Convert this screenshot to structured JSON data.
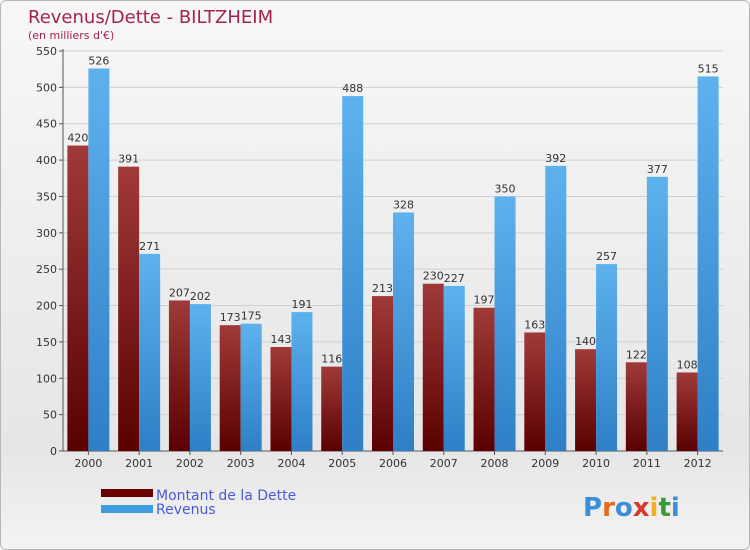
{
  "chart_data": {
    "type": "bar",
    "title": "Revenus/Dette - BILTZHEIM",
    "subtitle": "(en milliers d'€)",
    "categories": [
      "2000",
      "2001",
      "2002",
      "2003",
      "2004",
      "2005",
      "2006",
      "2007",
      "2008",
      "2009",
      "2010",
      "2011",
      "2012"
    ],
    "series": [
      {
        "name": "Montant de la Dette",
        "color": "#7a0a0a",
        "values": [
          420,
          391,
          207,
          173,
          143,
          116,
          213,
          230,
          197,
          163,
          140,
          122,
          108
        ]
      },
      {
        "name": "Revenus",
        "color": "#3f9ddf",
        "values": [
          526,
          271,
          202,
          175,
          191,
          488,
          328,
          227,
          350,
          392,
          257,
          377,
          515
        ]
      }
    ],
    "ylim": [
      0,
      550
    ],
    "yticks": [
      0,
      50,
      100,
      150,
      200,
      250,
      300,
      350,
      400,
      450,
      500,
      550
    ],
    "grid": true,
    "legend_position": "bottom-left"
  },
  "logo": {
    "text": "Proxiti"
  }
}
